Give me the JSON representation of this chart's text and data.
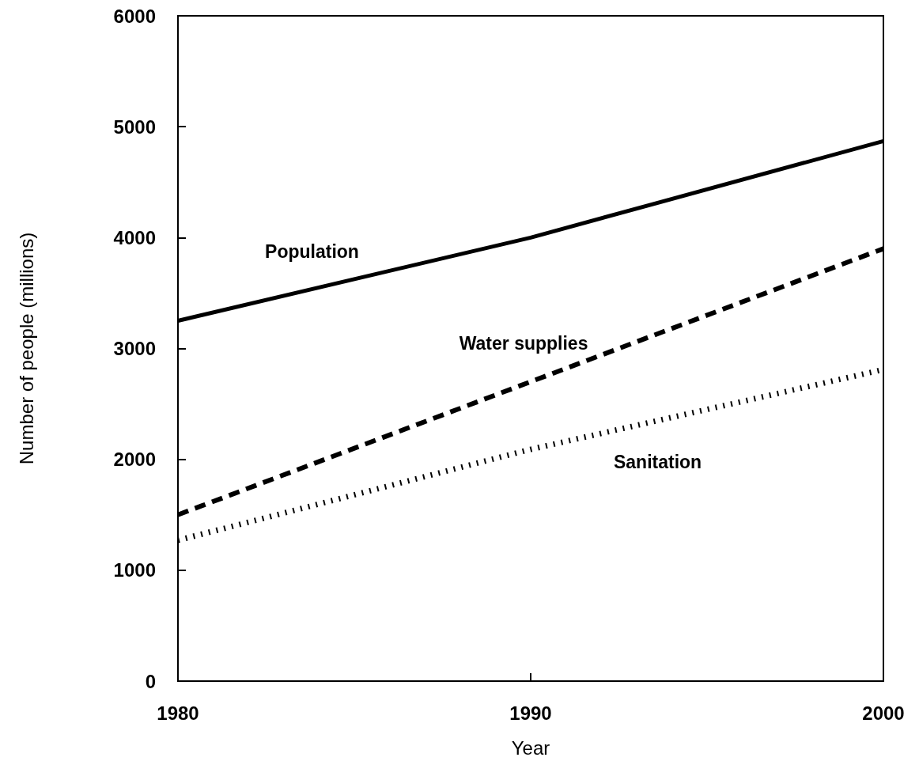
{
  "chart_data": {
    "type": "line",
    "xlabel": "Year",
    "ylabel": "Number of people (millions)",
    "x": [
      1980,
      1990,
      2000
    ],
    "series": [
      {
        "name": "Population",
        "color": "#000000",
        "line_style": "solid",
        "values": [
          3250,
          4000,
          4870
        ]
      },
      {
        "name": "Water supplies",
        "color": "#000000",
        "line_style": "dashed",
        "values": [
          1500,
          2700,
          3900
        ]
      },
      {
        "name": "Sanitation",
        "color": "#000000",
        "line_style": "dotted",
        "values": [
          1270,
          2090,
          2810
        ]
      }
    ],
    "xlim": [
      1980,
      2000
    ],
    "xticks": [
      1980,
      1990,
      2000
    ],
    "ylim": [
      0,
      6000
    ],
    "yticks": [
      0,
      1000,
      2000,
      3000,
      4000,
      5000,
      6000
    ],
    "grid": false,
    "legend": false,
    "marker": "none"
  }
}
